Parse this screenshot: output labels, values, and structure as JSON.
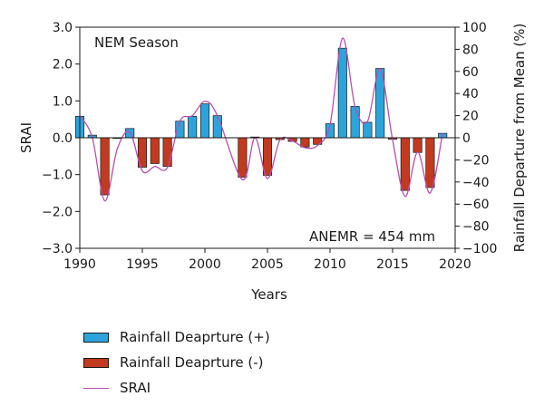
{
  "chart_data": {
    "type": "bar",
    "annotation_title": "NEM Season",
    "annotation_note": "ANEMR = 454 mm",
    "xlabel": "Years",
    "ylabel_left": "SRAI",
    "ylabel_right": "Rainfall Departure from Mean (%)",
    "xlim": [
      1990,
      2020
    ],
    "ylim_left": [
      -3.0,
      3.0
    ],
    "ylim_right": [
      -100,
      100
    ],
    "x_ticks": [
      "1990",
      "1995",
      "2000",
      "2005",
      "2010",
      "2015",
      "2020"
    ],
    "y_ticks_left": [
      "3.0",
      "2.0",
      "1.0",
      "0.0",
      "−1.0",
      "−2.0",
      "−3.0"
    ],
    "y_ticks_right": [
      "100",
      "80",
      "60",
      "40",
      "20",
      "0",
      "−20",
      "−40",
      "−60",
      "−80",
      "−100"
    ],
    "legend_position": "bottom-left",
    "grid": false,
    "colors": {
      "positive": "#2ba4dc",
      "negative": "#c23a1f",
      "line": "#b74fb0"
    },
    "series": [
      {
        "name": "Rainfall Deaprture (+)",
        "points": [
          {
            "x": 1990,
            "y": 0.58
          },
          {
            "x": 1991,
            "y": 0.07
          },
          {
            "x": 1994,
            "y": 0.25
          },
          {
            "x": 1998,
            "y": 0.45
          },
          {
            "x": 1999,
            "y": 0.58
          },
          {
            "x": 2000,
            "y": 0.92
          },
          {
            "x": 2001,
            "y": 0.6
          },
          {
            "x": 2004,
            "y": 0.02
          },
          {
            "x": 2010,
            "y": 0.38
          },
          {
            "x": 2011,
            "y": 2.43
          },
          {
            "x": 2012,
            "y": 0.85
          },
          {
            "x": 2013,
            "y": 0.42
          },
          {
            "x": 2014,
            "y": 1.88
          },
          {
            "x": 2019,
            "y": 0.12
          }
        ]
      },
      {
        "name": "Rainfall Deaprture (-)",
        "points": [
          {
            "x": 1992,
            "y": -1.55
          },
          {
            "x": 1993,
            "y": -0.02
          },
          {
            "x": 1995,
            "y": -0.8
          },
          {
            "x": 1996,
            "y": -0.7
          },
          {
            "x": 1997,
            "y": -0.78
          },
          {
            "x": 2003,
            "y": -1.07
          },
          {
            "x": 2005,
            "y": -1.02
          },
          {
            "x": 2006,
            "y": -0.05
          },
          {
            "x": 2007,
            "y": -0.1
          },
          {
            "x": 2008,
            "y": -0.25
          },
          {
            "x": 2009,
            "y": -0.18
          },
          {
            "x": 2015,
            "y": -0.04
          },
          {
            "x": 2016,
            "y": -1.43
          },
          {
            "x": 2017,
            "y": -0.4
          },
          {
            "x": 2018,
            "y": -1.35
          }
        ]
      },
      {
        "name": "SRAI",
        "axis": "right",
        "points": [
          {
            "x": 1990,
            "y": 20
          },
          {
            "x": 1991,
            "y": 0
          },
          {
            "x": 1992,
            "y": -57
          },
          {
            "x": 1993,
            "y": -10
          },
          {
            "x": 1994,
            "y": 5
          },
          {
            "x": 1995,
            "y": -30
          },
          {
            "x": 1996,
            "y": -26
          },
          {
            "x": 1997,
            "y": -27
          },
          {
            "x": 1998,
            "y": 15
          },
          {
            "x": 1999,
            "y": 20
          },
          {
            "x": 2000,
            "y": 33
          },
          {
            "x": 2001,
            "y": 20
          },
          {
            "x": 2003,
            "y": -38
          },
          {
            "x": 2004,
            "y": 0
          },
          {
            "x": 2005,
            "y": -37
          },
          {
            "x": 2006,
            "y": -2
          },
          {
            "x": 2007,
            "y": -3
          },
          {
            "x": 2008,
            "y": -9
          },
          {
            "x": 2009,
            "y": -7
          },
          {
            "x": 2010,
            "y": 12
          },
          {
            "x": 2011,
            "y": 90
          },
          {
            "x": 2012,
            "y": 28
          },
          {
            "x": 2013,
            "y": 15
          },
          {
            "x": 2014,
            "y": 62
          },
          {
            "x": 2015,
            "y": -2
          },
          {
            "x": 2016,
            "y": -53
          },
          {
            "x": 2017,
            "y": -13
          },
          {
            "x": 2018,
            "y": -50
          },
          {
            "x": 2019,
            "y": 4
          }
        ]
      }
    ]
  }
}
